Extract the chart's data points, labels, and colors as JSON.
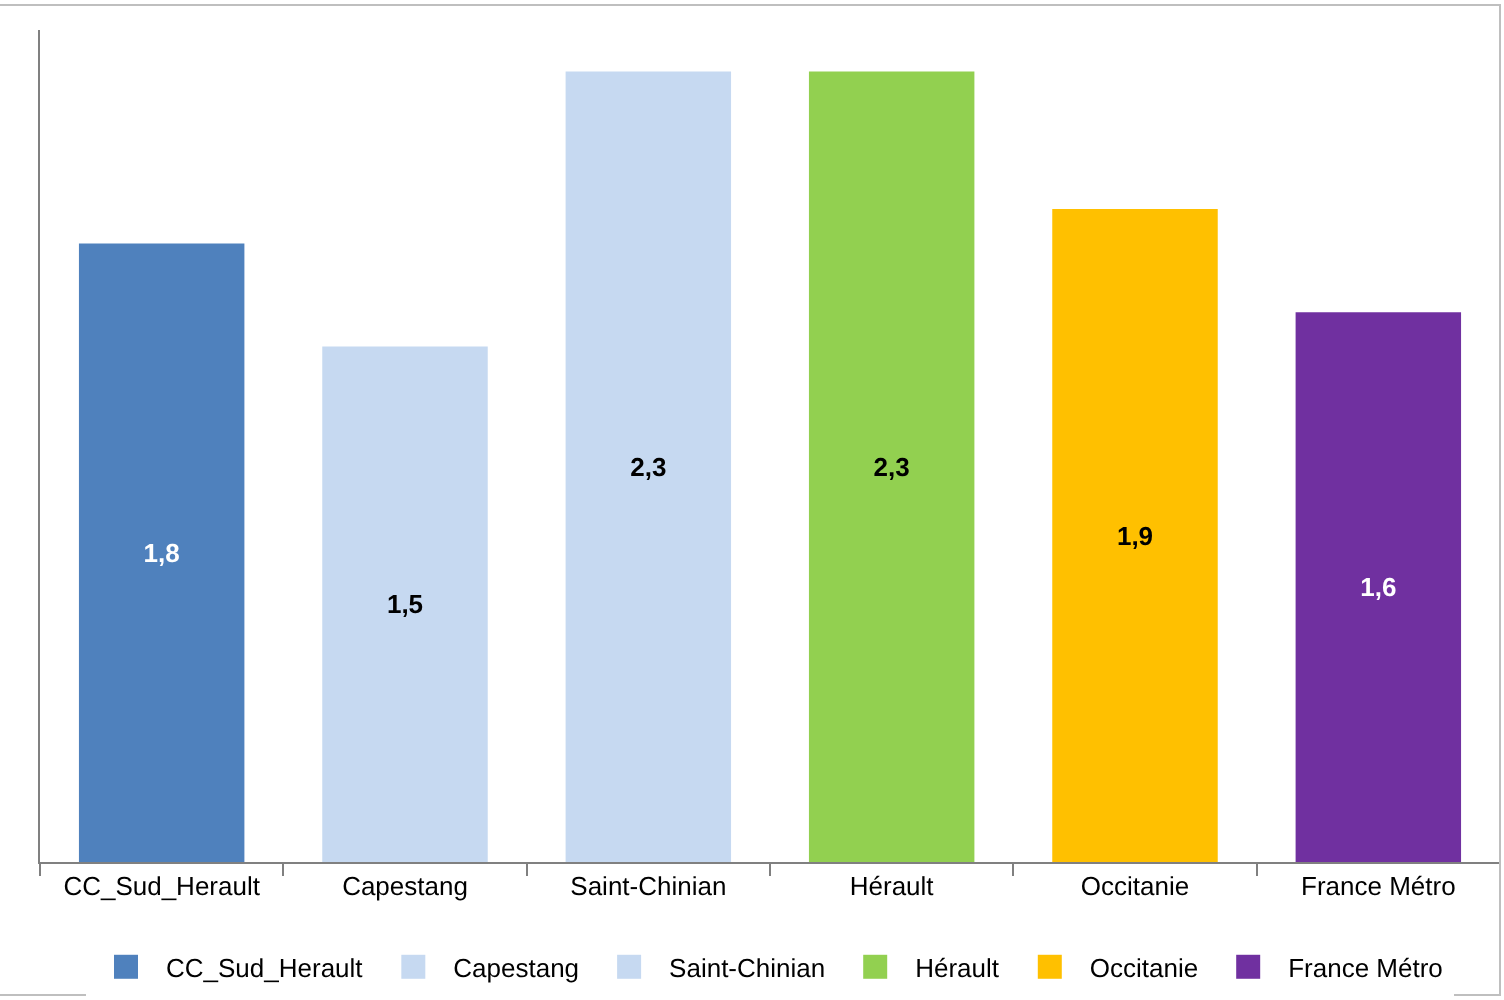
{
  "chart_data": {
    "type": "bar",
    "categories": [
      "CC_Sud_Herault",
      "Capestang",
      "Saint-Chinian",
      "Hérault",
      "Occitanie",
      "France Métro"
    ],
    "series": [
      {
        "name": "CC_Sud_Herault",
        "color": "#4f81bd",
        "values": [
          1.8,
          null,
          null,
          null,
          null,
          null
        ],
        "value_labels": [
          "1,8",
          null,
          null,
          null,
          null,
          null
        ]
      },
      {
        "name": "Capestang",
        "color": "#c6d9f1",
        "values": [
          null,
          1.5,
          null,
          null,
          null,
          null
        ],
        "value_labels": [
          null,
          "1,5",
          null,
          null,
          null,
          null
        ]
      },
      {
        "name": "Saint-Chinian",
        "color": "#c6d9f1",
        "values": [
          null,
          null,
          2.3,
          null,
          null,
          null
        ],
        "value_labels": [
          null,
          null,
          "2,3",
          null,
          null,
          null
        ]
      },
      {
        "name": "Hérault",
        "color": "#92d050",
        "values": [
          null,
          null,
          null,
          2.3,
          null,
          null
        ],
        "value_labels": [
          null,
          null,
          null,
          "2,3",
          null,
          null
        ]
      },
      {
        "name": "Occitanie",
        "color": "#ffc000",
        "values": [
          null,
          null,
          null,
          null,
          1.9,
          null
        ],
        "value_labels": [
          null,
          null,
          null,
          null,
          "1,9",
          null
        ]
      },
      {
        "name": "France Métro",
        "color": "#7030a0",
        "values": [
          null,
          null,
          null,
          null,
          null,
          1.6
        ],
        "value_labels": [
          null,
          null,
          null,
          null,
          null,
          "1,6"
        ]
      }
    ],
    "tick_labels": "x",
    "legend": "bottom"
  }
}
